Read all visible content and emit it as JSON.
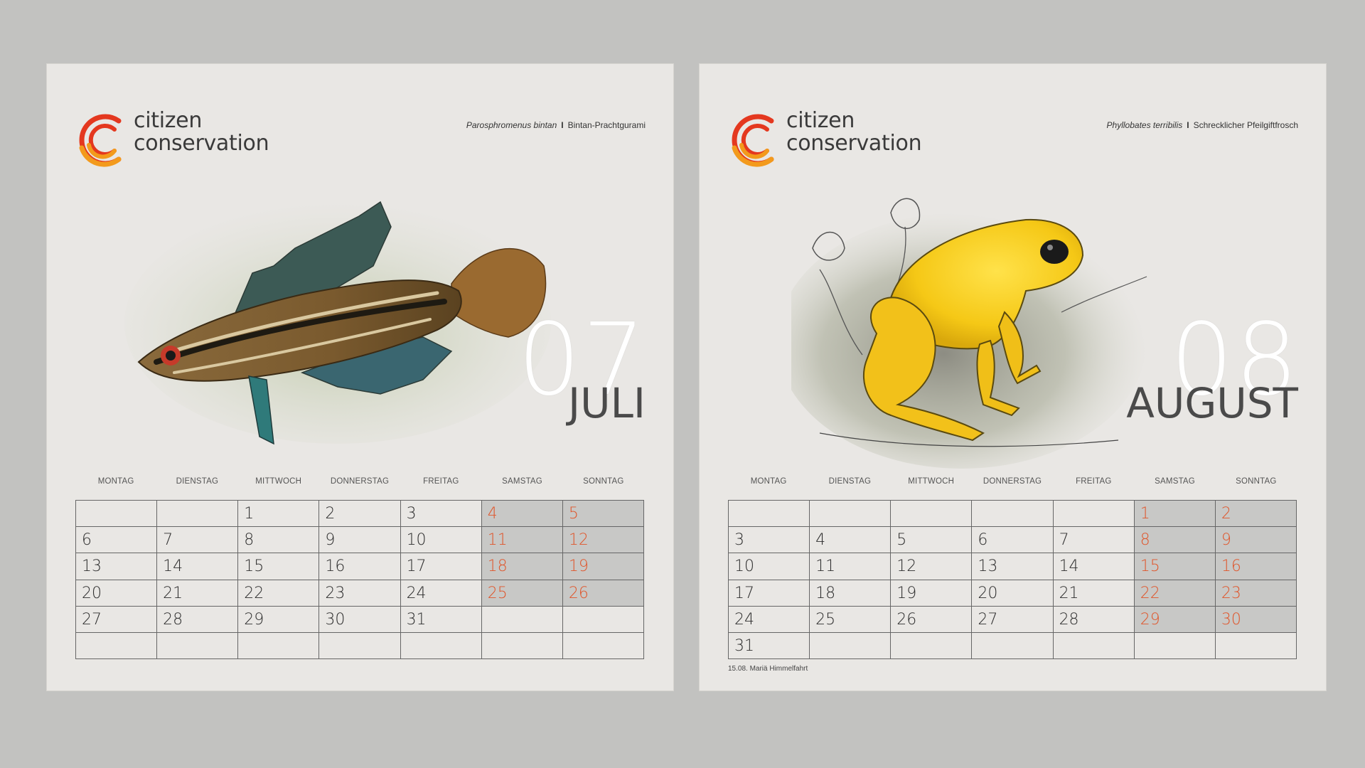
{
  "brand": {
    "line1": "citizen",
    "line2": "conservation",
    "color_red": "#e4381f",
    "color_orange": "#f39a1c"
  },
  "pages": [
    {
      "species_latin": "Parosphromenus bintan",
      "species_sep": "I",
      "species_common": "Bintan-Prachtgurami",
      "month_number": "07",
      "month_name": "JULI",
      "weekdays": [
        "MONTAG",
        "DIENSTAG",
        "MITTWOCH",
        "DONNERSTAG",
        "FREITAG",
        "SAMSTAG",
        "SONNTAG"
      ],
      "days": [
        "",
        "",
        "1",
        "2",
        "3",
        "4",
        "5",
        "6",
        "7",
        "8",
        "9",
        "10",
        "11",
        "12",
        "13",
        "14",
        "15",
        "16",
        "17",
        "18",
        "19",
        "20",
        "21",
        "22",
        "23",
        "24",
        "25",
        "26",
        "27",
        "28",
        "29",
        "30",
        "31",
        "",
        "",
        "",
        "",
        "",
        "",
        "",
        "",
        ""
      ],
      "note": ""
    },
    {
      "species_latin": "Phyllobates terribilis",
      "species_sep": "I",
      "species_common": "Schrecklicher Pfeilgiftfrosch",
      "month_number": "08",
      "month_name": "AUGUST",
      "weekdays": [
        "MONTAG",
        "DIENSTAG",
        "MITTWOCH",
        "DONNERSTAG",
        "FREITAG",
        "SAMSTAG",
        "SONNTAG"
      ],
      "days": [
        "",
        "",
        "",
        "",
        "",
        "1",
        "2",
        "3",
        "4",
        "5",
        "6",
        "7",
        "8",
        "9",
        "10",
        "11",
        "12",
        "13",
        "14",
        "15",
        "16",
        "17",
        "18",
        "19",
        "20",
        "21",
        "22",
        "23",
        "24",
        "25",
        "26",
        "27",
        "28",
        "29",
        "30",
        "31",
        "",
        "",
        "",
        "",
        "",
        ""
      ],
      "note": "15.08. Mariä Himmelfahrt"
    }
  ],
  "colors": {
    "weekend_fill": "#c8c8c6",
    "weekend_text": "#e0552a",
    "page_bg": "#e9e7e4",
    "outer_bg": "#c2c2c0"
  }
}
